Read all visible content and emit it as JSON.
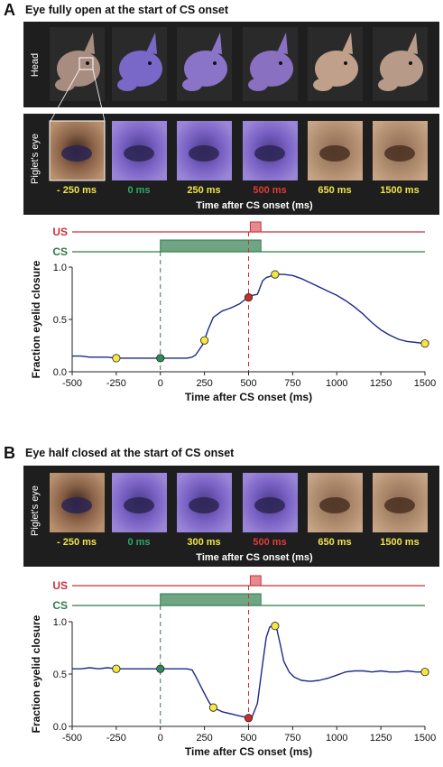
{
  "panelA": {
    "letter": "A",
    "title": "Eye fully open at the start of CS onset",
    "head_label": "Head",
    "eye_label": "Piglet's eye",
    "frame_labels": [
      "- 250 ms",
      "0 ms",
      "250 ms",
      "500 ms",
      "650 ms",
      "1500 ms"
    ],
    "frame_label_colors": [
      "#f2e34a",
      "#2ea86a",
      "#f2e34a",
      "#e23a3a",
      "#f2e34a",
      "#f2e34a"
    ],
    "strip_axis_label": "Time after CS onset (ms)"
  },
  "panelB": {
    "letter": "B",
    "title": "Eye half closed at the start of CS onset",
    "eye_label": "Piglet's eye",
    "frame_labels": [
      "- 250 ms",
      "0 ms",
      "300 ms",
      "500 ms",
      "650 ms",
      "1500 ms"
    ],
    "frame_label_colors": [
      "#f2e34a",
      "#2ea86a",
      "#f2e34a",
      "#e23a3a",
      "#f2e34a",
      "#f2e34a"
    ],
    "strip_axis_label": "Time after CS onset (ms)"
  },
  "colors": {
    "us": "#c8323a",
    "us_fill": "#e58a8f",
    "cs": "#2e7a4a",
    "cs_fill": "#6fa583",
    "trace": "#1b2a8a",
    "cs_marker": "#2e8b57",
    "us_marker": "#d02a2a",
    "point_marker": "#f5e642",
    "strip_bg": "#1e1e1e"
  },
  "chart_data": [
    {
      "type": "line",
      "title": "",
      "xlabel": "Time after CS onset (ms)",
      "ylabel": "Fraction eyelid closure",
      "xlim": [
        -500,
        1500
      ],
      "ylim": [
        0.0,
        1.0
      ],
      "x_ticks": [
        -500,
        -250,
        0,
        250,
        500,
        750,
        1000,
        1250,
        1500
      ],
      "y_ticks": [
        "0.0",
        "0.5",
        "1.0"
      ],
      "stimulus_labels": [
        "US",
        "CS"
      ],
      "cs_interval": [
        0,
        570
      ],
      "us_interval": [
        510,
        570
      ],
      "series": [
        {
          "x": [
            -500,
            -450,
            -400,
            -350,
            -300,
            -250,
            -200,
            -150,
            -100,
            -50,
            0,
            50,
            100,
            150,
            180,
            200,
            220,
            240,
            250,
            270,
            300,
            350,
            400,
            450,
            480,
            500,
            520,
            550,
            580,
            600,
            620,
            650,
            700,
            750,
            800,
            850,
            900,
            950,
            1000,
            1050,
            1100,
            1150,
            1200,
            1250,
            1300,
            1350,
            1400,
            1450,
            1500
          ],
          "values": [
            0.15,
            0.15,
            0.14,
            0.14,
            0.14,
            0.13,
            0.13,
            0.13,
            0.13,
            0.13,
            0.13,
            0.13,
            0.13,
            0.13,
            0.14,
            0.16,
            0.21,
            0.26,
            0.3,
            0.4,
            0.52,
            0.58,
            0.61,
            0.65,
            0.69,
            0.71,
            0.73,
            0.74,
            0.87,
            0.9,
            0.91,
            0.93,
            0.93,
            0.92,
            0.89,
            0.85,
            0.81,
            0.77,
            0.73,
            0.68,
            0.62,
            0.55,
            0.47,
            0.4,
            0.35,
            0.31,
            0.29,
            0.28,
            0.27
          ]
        }
      ],
      "marked_points": [
        {
          "x": -250,
          "y": 0.13,
          "kind": "frame"
        },
        {
          "x": 0,
          "y": 0.13,
          "kind": "cs"
        },
        {
          "x": 250,
          "y": 0.3,
          "kind": "frame"
        },
        {
          "x": 500,
          "y": 0.71,
          "kind": "us"
        },
        {
          "x": 650,
          "y": 0.93,
          "kind": "frame"
        },
        {
          "x": 1500,
          "y": 0.27,
          "kind": "frame"
        }
      ]
    },
    {
      "type": "line",
      "title": "",
      "xlabel": "Time after CS onset (ms)",
      "ylabel": "Fraction eyelid closure",
      "xlim": [
        -500,
        1500
      ],
      "ylim": [
        0.0,
        1.0
      ],
      "x_ticks": [
        -500,
        -250,
        0,
        250,
        500,
        750,
        1000,
        1250,
        1500
      ],
      "y_ticks": [
        "0.0",
        "0.5",
        "1.0"
      ],
      "stimulus_labels": [
        "US",
        "CS"
      ],
      "cs_interval": [
        0,
        570
      ],
      "us_interval": [
        510,
        570
      ],
      "series": [
        {
          "x": [
            -500,
            -450,
            -400,
            -350,
            -300,
            -250,
            -200,
            -150,
            -100,
            -50,
            0,
            50,
            100,
            150,
            180,
            200,
            230,
            260,
            280,
            300,
            350,
            400,
            450,
            480,
            500,
            520,
            550,
            580,
            600,
            620,
            640,
            660,
            680,
            700,
            730,
            760,
            800,
            850,
            900,
            950,
            1000,
            1050,
            1100,
            1150,
            1200,
            1250,
            1300,
            1350,
            1400,
            1450,
            1500
          ],
          "values": [
            0.55,
            0.55,
            0.56,
            0.55,
            0.56,
            0.55,
            0.55,
            0.55,
            0.55,
            0.55,
            0.55,
            0.55,
            0.55,
            0.55,
            0.54,
            0.48,
            0.38,
            0.28,
            0.22,
            0.18,
            0.14,
            0.12,
            0.1,
            0.09,
            0.08,
            0.09,
            0.22,
            0.6,
            0.85,
            0.95,
            0.96,
            0.93,
            0.78,
            0.62,
            0.52,
            0.47,
            0.44,
            0.43,
            0.44,
            0.46,
            0.49,
            0.52,
            0.53,
            0.53,
            0.52,
            0.53,
            0.52,
            0.52,
            0.53,
            0.52,
            0.52
          ]
        }
      ],
      "marked_points": [
        {
          "x": -250,
          "y": 0.55,
          "kind": "frame"
        },
        {
          "x": 0,
          "y": 0.55,
          "kind": "cs"
        },
        {
          "x": 300,
          "y": 0.18,
          "kind": "frame"
        },
        {
          "x": 500,
          "y": 0.08,
          "kind": "us"
        },
        {
          "x": 650,
          "y": 0.96,
          "kind": "frame"
        },
        {
          "x": 1500,
          "y": 0.52,
          "kind": "frame"
        }
      ]
    }
  ]
}
